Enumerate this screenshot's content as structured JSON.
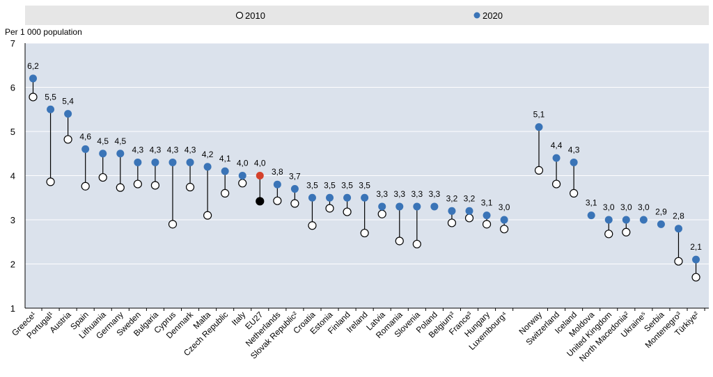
{
  "chart_data": {
    "type": "dot",
    "title": "",
    "ylabel": "Per 1 000 population",
    "xlabel": "",
    "ylim": [
      1,
      7
    ],
    "yticks": [
      1,
      2,
      3,
      4,
      5,
      6,
      7
    ],
    "grid": true,
    "legend_position": "top",
    "groups": [
      {
        "categories": [
          "Greece¹",
          "Portugal¹",
          "Austria",
          "Spain",
          "Lithuania",
          "Germany",
          "Sweden",
          "Bulgaria",
          "Cyprus",
          "Denmark",
          "Malta",
          "Czech Republic",
          "Italy",
          "EU27",
          "Netherlands",
          "Slovak Republic²",
          "Croatia",
          "Estonia",
          "Finland",
          "Ireland",
          "Latvia",
          "Romania",
          "Slovenia",
          "Poland",
          "Belgium³",
          "France³",
          "Hungary",
          "Luxembourg⁴"
        ]
      },
      {
        "categories": [
          "Norway",
          "Switzerland",
          "Iceland",
          "Moldova",
          "United Kingdom",
          "North Macedonia²",
          "Ukraine⁵",
          "Serbia",
          "Montenegro³",
          "Türkiye²"
        ]
      }
    ],
    "series": [
      {
        "name": "2010",
        "values": [
          5.78,
          3.86,
          4.82,
          3.76,
          3.96,
          3.73,
          3.81,
          3.78,
          2.9,
          3.74,
          3.1,
          3.6,
          3.83,
          3.42,
          3.43,
          3.37,
          2.87,
          3.26,
          3.18,
          2.7,
          3.13,
          2.52,
          2.45,
          null,
          2.93,
          3.04,
          2.9,
          2.79,
          4.12,
          3.81,
          3.6,
          null,
          2.68,
          2.72,
          null,
          null,
          2.06,
          1.7
        ]
      },
      {
        "name": "2020",
        "values": [
          6.2,
          5.5,
          5.4,
          4.6,
          4.5,
          4.5,
          4.3,
          4.3,
          4.3,
          4.3,
          4.2,
          4.1,
          4.0,
          4.0,
          3.8,
          3.7,
          3.5,
          3.5,
          3.5,
          3.5,
          3.3,
          3.3,
          3.3,
          3.3,
          3.2,
          3.2,
          3.1,
          3.0,
          5.1,
          4.4,
          4.3,
          3.1,
          3.0,
          3.0,
          3.0,
          2.9,
          2.8,
          2.1
        ]
      }
    ],
    "data_labels": [
      "6,2",
      "5,5",
      "5,4",
      "4,6",
      "4,5",
      "4,5",
      "4,3",
      "4,3",
      "4,3",
      "4,3",
      "4,2",
      "4,1",
      "4,0",
      "4,0",
      "3,8",
      "3,7",
      "3,5",
      "3,5",
      "3,5",
      "3,5",
      "3,3",
      "3,3",
      "3,3",
      "3,3",
      "3,2",
      "3,2",
      "3,1",
      "3,0",
      "5,1",
      "4,4",
      "4,3",
      "3,1",
      "3,0",
      "3,0",
      "3,0",
      "2,9",
      "2,8",
      "2,1"
    ],
    "highlight": {
      "category": "EU27",
      "color_2020": "#d4412b",
      "color_2010": "#000000"
    },
    "colors": {
      "2010": "#ffffff",
      "2020": "#3a74b7",
      "band": "#e6e6e6",
      "plot_bg": "#dbe2ec",
      "grid": "#ffffff",
      "stem": "#000000"
    }
  }
}
